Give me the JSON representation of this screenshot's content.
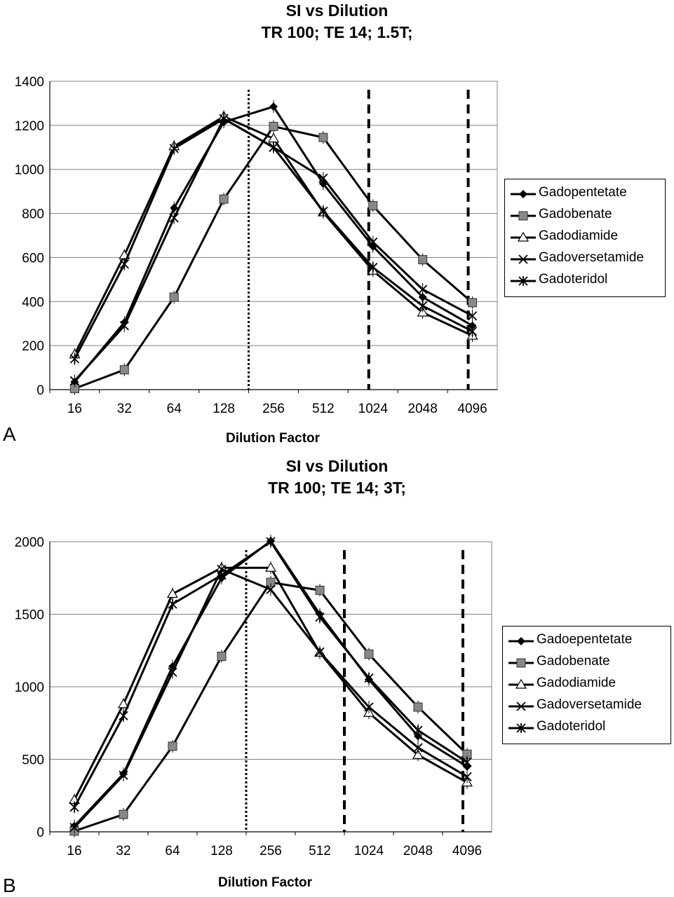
{
  "panels": [
    {
      "label": "A",
      "title_line1": "SI vs Dilution",
      "title_line2": "TR 100; TE 14; 1.5T;",
      "xlabel": "Dilution Factor"
    },
    {
      "label": "B",
      "title_line1": "SI vs Dilution",
      "title_line2": "TR 100; TE 14; 3T;",
      "xlabel": "Dilution Factor"
    }
  ],
  "chart_data": [
    {
      "type": "line",
      "title": "SI vs Dilution TR 100; TE 14; 1.5T;",
      "xlabel": "Dilution Factor",
      "ylabel": "",
      "categories": [
        "16",
        "32",
        "64",
        "128",
        "256",
        "512",
        "1024",
        "2048",
        "4096"
      ],
      "ylim": [
        0,
        1400
      ],
      "yticks": [
        0,
        200,
        400,
        600,
        800,
        1000,
        1200,
        1400
      ],
      "grid": "horizontal",
      "legend": "right",
      "vertical_lines": [
        {
          "style": "dotted",
          "between": [
            "128",
            "256"
          ]
        },
        {
          "style": "dashed",
          "at": "1024"
        },
        {
          "style": "dashed",
          "at": "4096"
        }
      ],
      "series": [
        {
          "name": "Gadopentetate",
          "marker": "diamond",
          "values": [
            35,
            305,
            825,
            1215,
            1285,
            935,
            650,
            420,
            290
          ]
        },
        {
          "name": "Gadobenate",
          "marker": "square",
          "values": [
            5,
            90,
            420,
            865,
            1195,
            1145,
            835,
            590,
            395
          ]
        },
        {
          "name": "Gadodiamide",
          "marker": "triangle",
          "values": [
            160,
            610,
            1105,
            1240,
            1140,
            805,
            540,
            350,
            245
          ]
        },
        {
          "name": "Gadoversetamide",
          "marker": "x",
          "values": [
            40,
            290,
            780,
            1230,
            1100,
            960,
            670,
            455,
            335
          ]
        },
        {
          "name": "Gadoteridol",
          "marker": "star",
          "values": [
            140,
            570,
            1095,
            1230,
            1100,
            810,
            555,
            380,
            265
          ]
        }
      ]
    },
    {
      "type": "line",
      "title": "SI vs Dilution TR 100; TE 14; 3T;",
      "xlabel": "Dilution Factor",
      "ylabel": "",
      "categories": [
        "16",
        "32",
        "64",
        "128",
        "256",
        "512",
        "1024",
        "2048",
        "4096"
      ],
      "ylim": [
        0,
        2000
      ],
      "yticks": [
        0,
        500,
        1000,
        1500,
        2000
      ],
      "grid": "horizontal",
      "legend": "right",
      "vertical_lines": [
        {
          "style": "dotted",
          "between": [
            "128",
            "256"
          ]
        },
        {
          "style": "dashed",
          "between": [
            "512",
            "1024"
          ]
        },
        {
          "style": "dashed",
          "at": "4096"
        }
      ],
      "series": [
        {
          "name": "Gadoepentetate",
          "marker": "diamond",
          "values": [
            40,
            400,
            1140,
            1750,
            2005,
            1500,
            1050,
            660,
            450
          ]
        },
        {
          "name": "Gadobenate",
          "marker": "square",
          "values": [
            5,
            120,
            590,
            1210,
            1720,
            1665,
            1225,
            860,
            535
          ]
        },
        {
          "name": "Gadodiamide",
          "marker": "triangle",
          "values": [
            220,
            880,
            1640,
            1820,
            1820,
            1235,
            820,
            530,
            340
          ]
        },
        {
          "name": "Gadoversetamide",
          "marker": "x",
          "values": [
            30,
            390,
            1100,
            1810,
            1670,
            1240,
            860,
            580,
            380
          ]
        },
        {
          "name": "Gadoteridol",
          "marker": "star",
          "values": [
            170,
            800,
            1570,
            1770,
            2000,
            1480,
            1060,
            700,
            480
          ]
        }
      ]
    }
  ]
}
